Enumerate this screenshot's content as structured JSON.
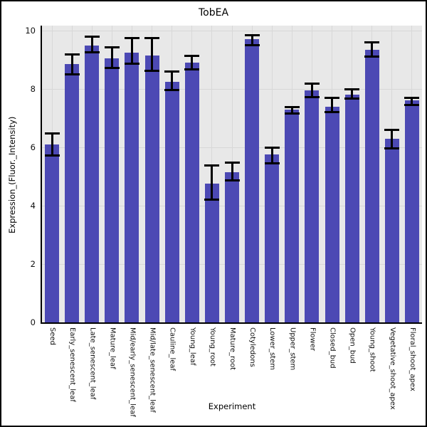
{
  "chart_data": {
    "type": "bar",
    "title": "TobEA",
    "xlabel": "Experiment",
    "ylabel": "Expression_(Fluor._Intensity)",
    "categories": [
      "Seed",
      "Early_senescent_leaf",
      "Late_senescent_leaf",
      "Mature_leaf",
      "Mid/early_senescent_leaf",
      "Mid/late_senescent_leaf",
      "Cauline_leaf",
      "Young_leaf",
      "Young_root",
      "Mature_root",
      "Cotyledons",
      "Lower_stem",
      "Upper_stem",
      "Flower",
      "Closed_bud",
      "Open_bud",
      "Young_shoot",
      "Vegetative_shoot_apex",
      "Floral_shoot_apex"
    ],
    "values": [
      6.1,
      8.85,
      9.5,
      9.05,
      9.25,
      9.15,
      8.25,
      8.9,
      4.75,
      5.15,
      9.7,
      5.75,
      7.3,
      7.95,
      7.4,
      7.8,
      9.35,
      6.3,
      7.6
    ],
    "error_low": [
      5.7,
      8.5,
      9.25,
      8.7,
      8.85,
      8.6,
      7.95,
      8.65,
      4.2,
      4.85,
      9.5,
      5.45,
      7.15,
      7.7,
      7.2,
      7.65,
      9.1,
      5.95,
      7.45
    ],
    "error_high": [
      6.5,
      9.2,
      9.8,
      9.45,
      9.75,
      9.75,
      8.6,
      9.15,
      5.4,
      5.5,
      9.85,
      6.0,
      7.4,
      8.2,
      7.7,
      8.0,
      9.6,
      6.6,
      7.7
    ],
    "yticks": [
      0,
      2,
      4,
      6,
      8,
      10
    ],
    "ylim": [
      0,
      10
    ],
    "grid": true,
    "legend_position": "none",
    "bar_color": "#4c49b4",
    "plot_bg_color": "#e8e8e8",
    "grid_color": "#d8d8d8",
    "error_color": "#000000"
  }
}
